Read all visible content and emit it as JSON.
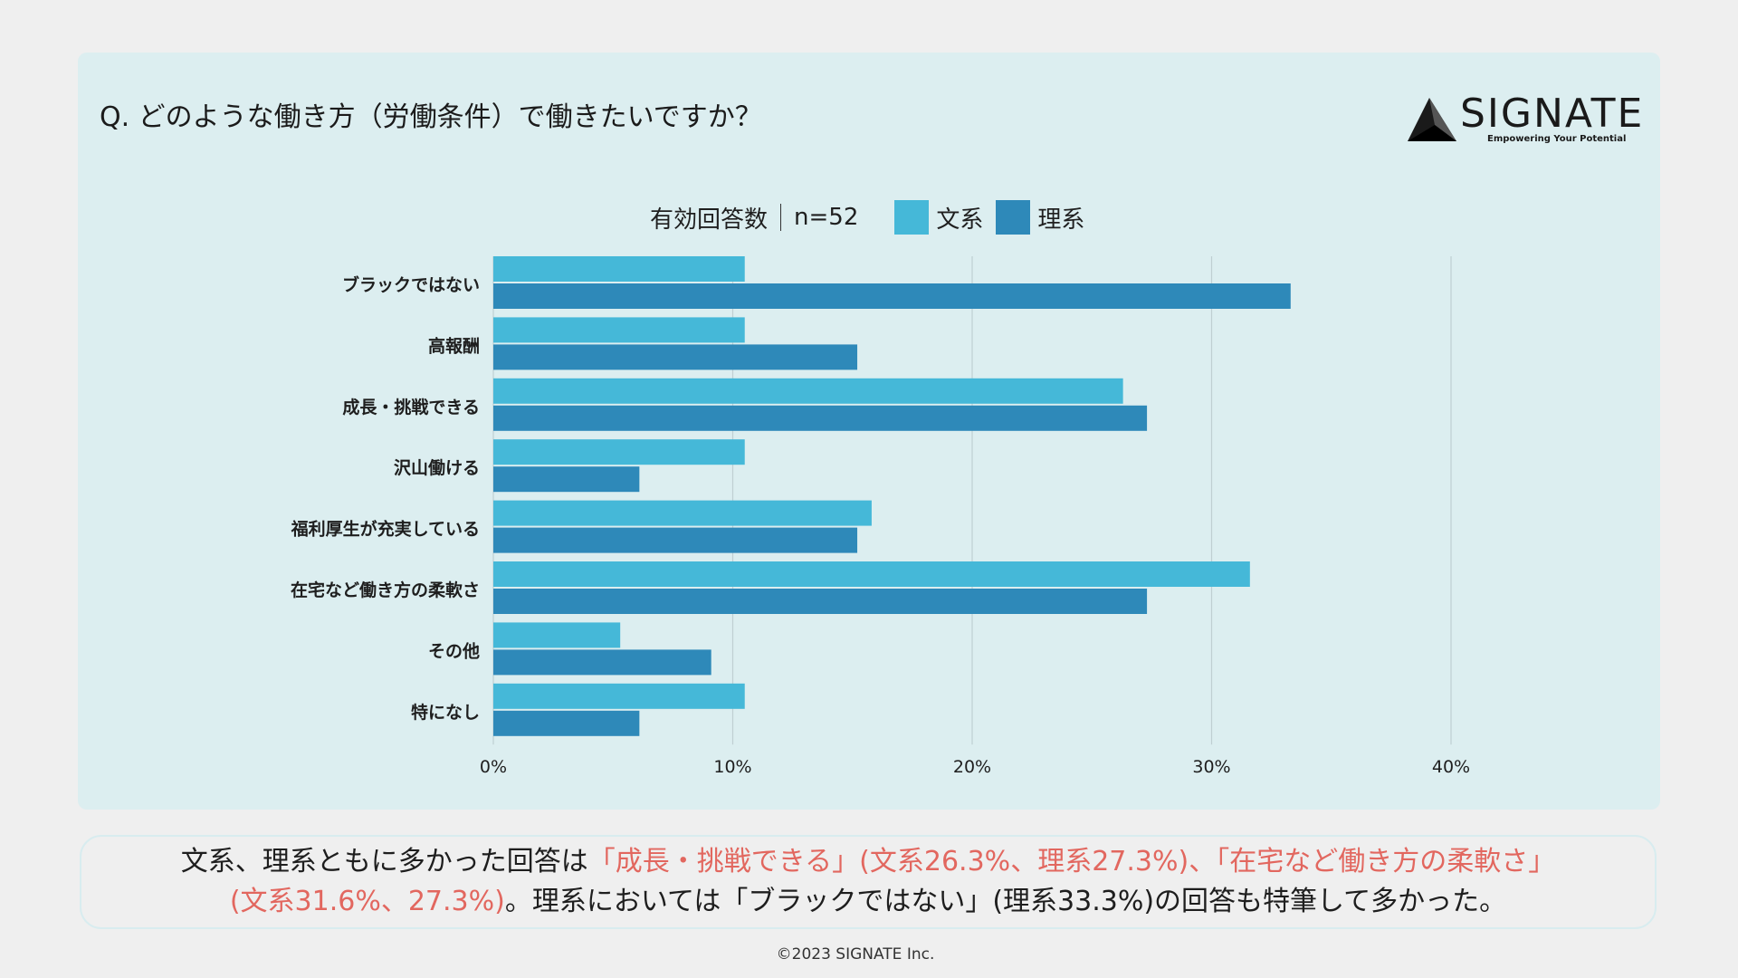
{
  "question": "Q. どのような働き方（労働条件）で働きたいですか？",
  "logo": {
    "text": "SIGNATE",
    "tagline": "Empowering Your Potential"
  },
  "legend": {
    "sample_label": "有効回答数",
    "sample_size": "n=52",
    "series1": "文系",
    "series2": "理系"
  },
  "colors": {
    "series1": "#45b8d8",
    "series2": "#2e89b9",
    "highlight": "#e2675f",
    "panel": "#dceef0"
  },
  "chart_data": {
    "type": "bar",
    "orientation": "horizontal",
    "categories": [
      "ブラックではない",
      "高報酬",
      "成長・挑戦できる",
      "沢山働ける",
      "福利厚生が充実している",
      "在宅など働き方の柔軟さ",
      "その他",
      "特になし"
    ],
    "series": [
      {
        "name": "文系",
        "values": [
          10.5,
          10.5,
          26.3,
          10.5,
          15.8,
          31.6,
          5.3,
          10.5
        ]
      },
      {
        "name": "理系",
        "values": [
          33.3,
          15.2,
          27.3,
          6.1,
          15.2,
          27.3,
          9.1,
          6.1
        ]
      }
    ],
    "xlim": [
      0,
      40
    ],
    "ticks": [
      0,
      10,
      20,
      30,
      40
    ],
    "tick_labels": [
      "0%",
      "10%",
      "20%",
      "30%",
      "40%"
    ],
    "grid": true
  },
  "summary": {
    "line1": [
      {
        "text": "文系、理系ともに多かった回答は",
        "hl": false
      },
      {
        "text": "「成長・挑戦できる」(文系26.3%、理系27.3%)、「在宅など働き方の柔軟さ」",
        "hl": true
      }
    ],
    "line2": [
      {
        "text": "(文系31.6%、27.3%)",
        "hl": true
      },
      {
        "text": "。理系においては「ブラックではない」(理系33.3%)の回答も特筆して多かった。",
        "hl": false
      }
    ]
  },
  "copyright": "©2023 SIGNATE Inc."
}
